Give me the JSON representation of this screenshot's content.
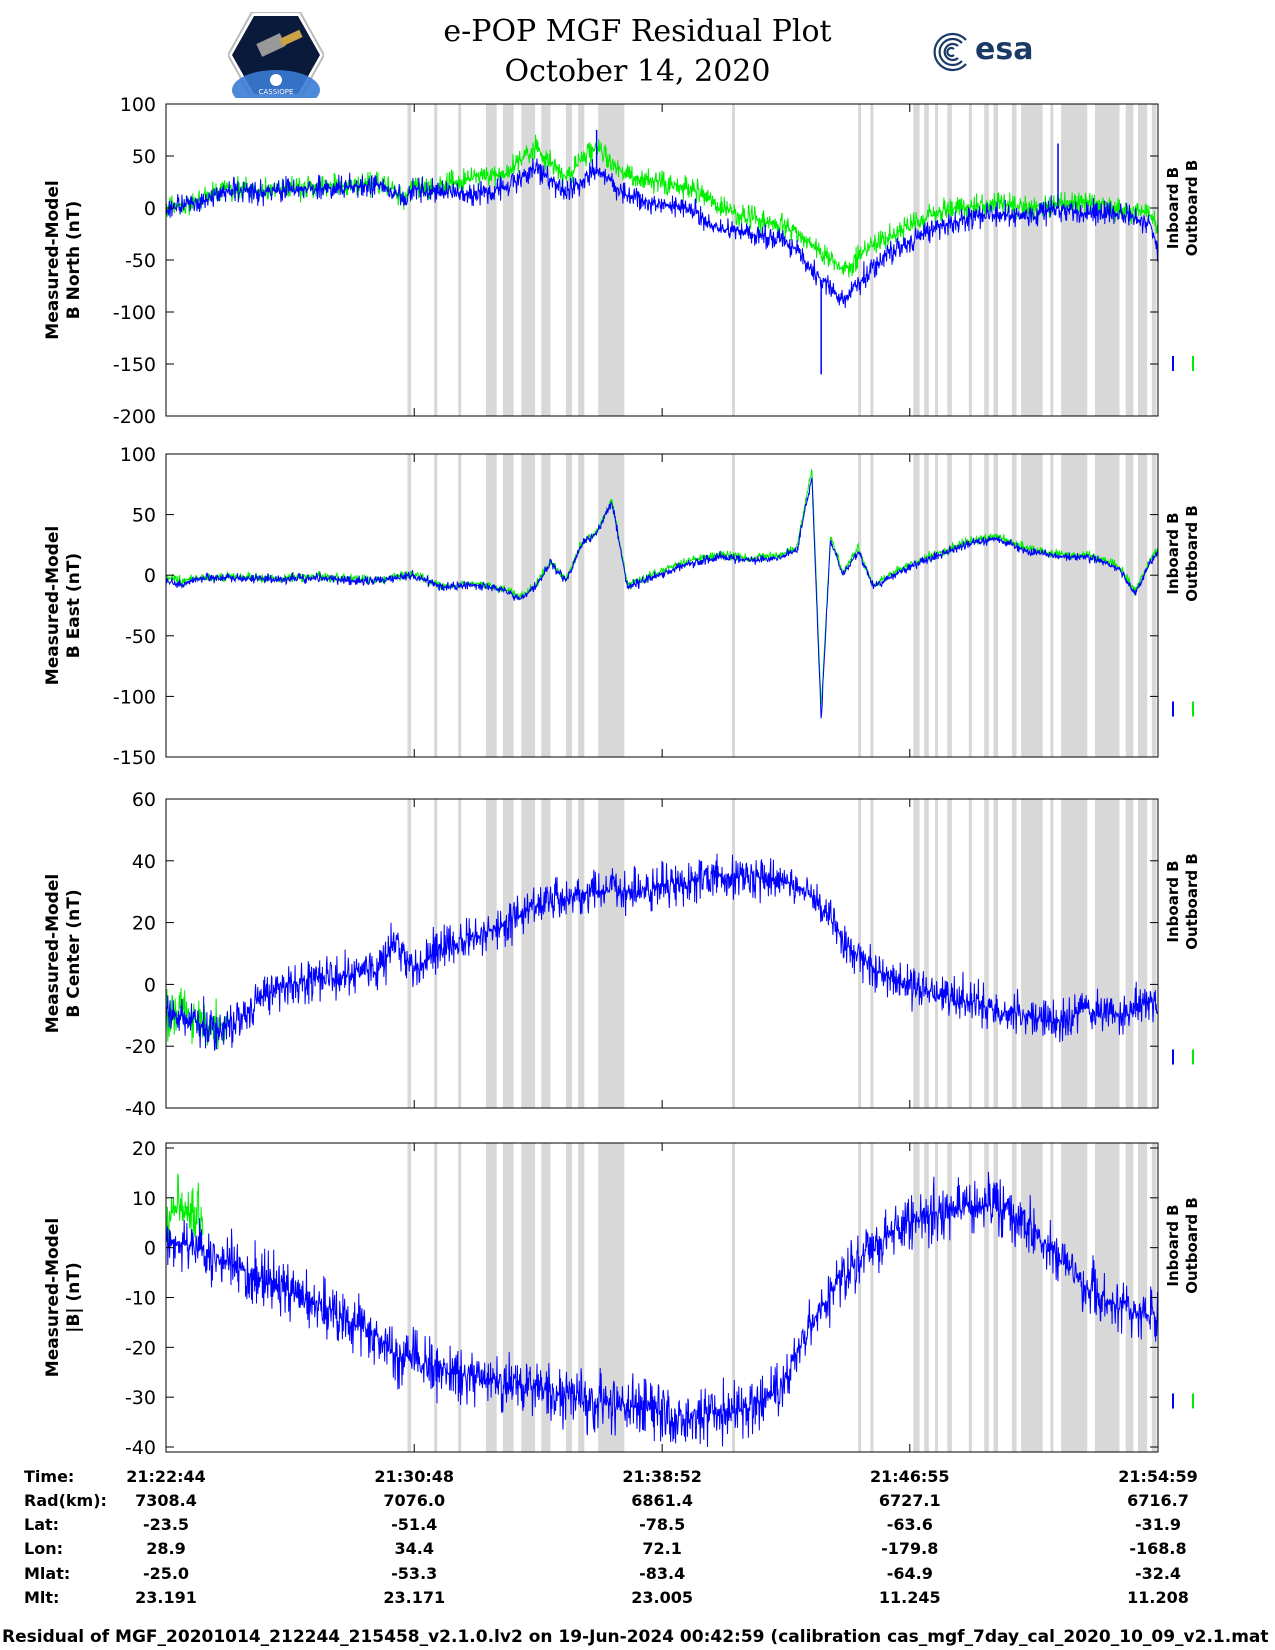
{
  "header": {
    "title_line1": "e-POP MGF Residual Plot",
    "title_line2": "October 14, 2020",
    "mission_logo": "CASSIOPE",
    "agency_logo": "esa"
  },
  "colors": {
    "inboard": "#0000ff",
    "outboard": "#00ee00",
    "gap": "#d8d8d8"
  },
  "legend": [
    "Inboard B",
    "Outboard B"
  ],
  "chart_data": [
    {
      "type": "line",
      "ylabel": [
        "Measured-Model",
        "B North (nT)"
      ],
      "ylim": [
        -200,
        100
      ],
      "yticks": [
        100,
        50,
        0,
        -50,
        -100,
        -150,
        -200
      ],
      "xlim_minutes": [
        0,
        32.25
      ],
      "series": [
        {
          "name": "Inboard B",
          "x": [
            0,
            1,
            2,
            3,
            4,
            5,
            6,
            7,
            7.8,
            8,
            8.5,
            9,
            10,
            11,
            12,
            13,
            14,
            15,
            16,
            17,
            18,
            19,
            20,
            20.5,
            21,
            22,
            23,
            24,
            25,
            25.5,
            26,
            27,
            28,
            29,
            30,
            31,
            32,
            32.25
          ],
          "y": [
            -2,
            5,
            18,
            15,
            17,
            18,
            20,
            22,
            8,
            20,
            15,
            16,
            12,
            18,
            40,
            15,
            38,
            10,
            5,
            0,
            -20,
            -25,
            -30,
            -40,
            -60,
            -90,
            -55,
            -35,
            -20,
            -15,
            -10,
            -5,
            -10,
            0,
            -5,
            -5,
            -15,
            -40
          ]
        },
        {
          "name": "Outboard B",
          "x": [
            0,
            1,
            2,
            3,
            4,
            5,
            6,
            7,
            7.8,
            8,
            8.5,
            9,
            10,
            11,
            12,
            13,
            14,
            15,
            16,
            17,
            18,
            19,
            20,
            20.5,
            21,
            22,
            23,
            24,
            25,
            25.5,
            26,
            27,
            28,
            29,
            30,
            31,
            32,
            32.25
          ],
          "y": [
            0,
            6,
            20,
            17,
            19,
            20,
            22,
            24,
            10,
            22,
            18,
            22,
            30,
            32,
            58,
            30,
            60,
            30,
            25,
            20,
            0,
            -10,
            -15,
            -25,
            -35,
            -60,
            -35,
            -20,
            -5,
            0,
            0,
            5,
            0,
            5,
            5,
            0,
            -5,
            -20
          ]
        }
      ],
      "spikes": [
        {
          "x": 21.3,
          "y": -160
        },
        {
          "x": 29.0,
          "y": 62
        },
        {
          "x": 14.0,
          "y": 75
        }
      ]
    },
    {
      "type": "line",
      "ylabel": [
        "Measured-Model",
        "B East (nT)"
      ],
      "ylim": [
        -150,
        100
      ],
      "yticks": [
        100,
        50,
        0,
        -50,
        -100,
        -150
      ],
      "xlim_minutes": [
        0,
        32.25
      ],
      "series": [
        {
          "name": "Inboard B",
          "x": [
            0,
            0.5,
            1,
            2,
            3,
            4,
            5,
            6,
            7,
            8,
            9,
            10,
            11,
            11.5,
            12,
            12.5,
            13,
            13.5,
            14,
            14.5,
            15,
            16,
            17,
            18,
            19,
            20,
            20.5,
            21,
            21.3,
            21.6,
            22,
            22.5,
            23,
            24,
            25,
            26,
            27,
            28,
            29,
            30,
            31,
            31.5,
            32,
            32.25
          ],
          "y": [
            -5,
            -8,
            -3,
            -2,
            -3,
            -3,
            -2,
            -4,
            -5,
            0,
            -10,
            -8,
            -12,
            -20,
            -10,
            10,
            -5,
            25,
            35,
            60,
            -10,
            0,
            10,
            15,
            12,
            15,
            20,
            80,
            -120,
            30,
            0,
            20,
            -10,
            5,
            15,
            25,
            30,
            20,
            15,
            15,
            5,
            -15,
            10,
            20
          ]
        },
        {
          "name": "Outboard B",
          "x": [
            0,
            0.5,
            1,
            2,
            3,
            4,
            5,
            6,
            7,
            8,
            9,
            10,
            11,
            11.5,
            12,
            12.5,
            13,
            13.5,
            14,
            14.5,
            15,
            16,
            17,
            18,
            19,
            20,
            20.5,
            21,
            21.3,
            21.6,
            22,
            22.5,
            23,
            24,
            25,
            26,
            27,
            28,
            29,
            30,
            31,
            31.5,
            32,
            32.25
          ],
          "y": [
            -2,
            -5,
            -2,
            -1,
            -2,
            -2,
            -1,
            -3,
            -4,
            1,
            -9,
            -7,
            -11,
            -19,
            -9,
            11,
            -4,
            26,
            36,
            62,
            -8,
            2,
            12,
            17,
            14,
            17,
            22,
            88,
            -110,
            32,
            2,
            22,
            -8,
            7,
            17,
            27,
            32,
            22,
            17,
            17,
            7,
            -13,
            12,
            22
          ]
        }
      ]
    },
    {
      "type": "line",
      "ylabel": [
        "Measured-Model",
        "B Center (nT)"
      ],
      "ylim": [
        -40,
        60
      ],
      "yticks": [
        60,
        40,
        20,
        0,
        -20,
        -40
      ],
      "xlim_minutes": [
        0,
        32.25
      ],
      "series": [
        {
          "name": "Inboard B",
          "x": [
            0,
            1,
            2,
            3,
            4,
            5,
            6,
            7,
            7.5,
            8,
            9,
            10,
            11,
            12,
            13,
            14,
            15,
            16,
            17,
            18,
            19,
            20,
            21,
            22,
            23,
            24,
            25,
            26,
            27,
            28,
            29,
            30,
            31,
            32,
            32.25
          ],
          "y": [
            -10,
            -12,
            -15,
            -5,
            0,
            2,
            3,
            5,
            15,
            5,
            12,
            15,
            20,
            25,
            28,
            30,
            30,
            32,
            33,
            35,
            35,
            33,
            30,
            15,
            5,
            0,
            -3,
            -5,
            -8,
            -10,
            -12,
            -8,
            -10,
            -5,
            -10
          ]
        },
        {
          "name": "Outboard B",
          "x": [
            0,
            0.5,
            1,
            1.5,
            2
          ],
          "y": [
            -10,
            -8,
            -12,
            -14,
            -13
          ]
        }
      ]
    },
    {
      "type": "line",
      "ylabel": [
        "Measured-Model",
        "|B| (nT)"
      ],
      "ylim": [
        -41,
        21
      ],
      "yticks": [
        20,
        10,
        0,
        -10,
        -20,
        -30,
        -40
      ],
      "xlim_minutes": [
        0,
        32.25
      ],
      "series": [
        {
          "name": "Inboard B",
          "x": [
            0,
            1,
            2,
            3,
            4,
            5,
            6,
            7,
            7.5,
            8,
            9,
            10,
            11,
            12,
            13,
            14,
            15,
            16,
            17,
            18,
            19,
            20,
            21,
            22,
            23,
            24,
            25,
            26,
            27,
            28,
            29,
            30,
            31,
            32,
            32.25
          ],
          "y": [
            2,
            0,
            -3,
            -6,
            -9,
            -12,
            -15,
            -18,
            -22,
            -22,
            -25,
            -26,
            -27,
            -28,
            -30,
            -31,
            -32,
            -33,
            -34,
            -33,
            -32,
            -28,
            -15,
            -5,
            0,
            5,
            7,
            8,
            8,
            5,
            -2,
            -8,
            -12,
            -14,
            -14
          ]
        },
        {
          "name": "Outboard B",
          "x": [
            0,
            0.5,
            0.9,
            1.2
          ],
          "y": [
            5,
            8,
            6,
            4
          ]
        }
      ]
    }
  ],
  "gap_bands_minutes": [
    [
      7.85,
      7.97
    ],
    [
      8.72,
      8.82
    ],
    [
      9.5,
      9.6
    ],
    [
      10.4,
      10.75
    ],
    [
      10.95,
      11.3
    ],
    [
      11.55,
      12.0
    ],
    [
      12.2,
      12.5
    ],
    [
      13.0,
      13.2
    ],
    [
      13.4,
      13.6
    ],
    [
      14.05,
      14.9
    ],
    [
      18.4,
      18.5
    ],
    [
      22.5,
      22.6
    ],
    [
      22.9,
      23.0
    ],
    [
      24.3,
      24.5
    ],
    [
      24.65,
      24.8
    ],
    [
      25.0,
      25.1
    ],
    [
      25.4,
      25.55
    ],
    [
      26.1,
      26.2
    ],
    [
      26.6,
      26.75
    ],
    [
      26.9,
      27.05
    ],
    [
      27.5,
      27.65
    ],
    [
      27.8,
      28.5
    ],
    [
      28.75,
      28.85
    ],
    [
      29.1,
      29.95
    ],
    [
      30.2,
      31.0
    ],
    [
      31.2,
      31.45
    ],
    [
      31.6,
      31.9
    ],
    [
      32.05,
      32.2
    ]
  ],
  "x_tick_minutes": [
    0,
    8.07,
    16.13,
    24.18,
    32.25
  ],
  "ephemeris": {
    "row_labels": [
      "Time:",
      "Rad(km):",
      "Lat:",
      "Lon:",
      "Mlat:",
      "Mlt:"
    ],
    "columns": [
      [
        "21:22:44",
        "7308.4",
        "-23.5",
        "28.9",
        "-25.0",
        "23.191"
      ],
      [
        "21:30:48",
        "7076.0",
        "-51.4",
        "34.4",
        "-53.3",
        "23.171"
      ],
      [
        "21:38:52",
        "6861.4",
        "-78.5",
        "72.1",
        "-83.4",
        "23.005"
      ],
      [
        "21:46:55",
        "6727.1",
        "-63.6",
        "-179.8",
        "-64.9",
        "11.245"
      ],
      [
        "21:54:59",
        "6716.7",
        "-31.9",
        "-168.8",
        "-32.4",
        "11.208"
      ]
    ]
  },
  "footer": "Residual of MGF_20201014_212244_215458_v2.1.0.lv2 on 19-Jun-2024 00:42:59 (calibration cas_mgf_7day_cal_2020_10_09_v2.1.mat )"
}
